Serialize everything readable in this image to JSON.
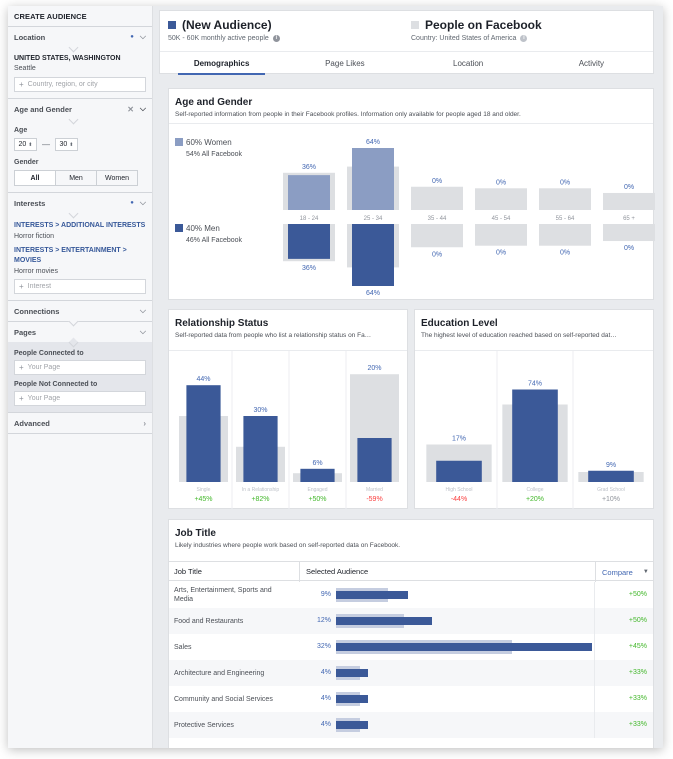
{
  "sidebar": {
    "title": "CREATE AUDIENCE",
    "location": {
      "label": "Location",
      "selected": "UNITED STATES, WASHINGTON",
      "city": "Seattle",
      "placeholder": "Country, region, or city"
    },
    "age_gender": {
      "label": "Age and Gender",
      "age_label": "Age",
      "age_min": "20",
      "age_max": "30",
      "gender_label": "Gender",
      "gender_options": [
        "All",
        "Men",
        "Women"
      ],
      "gender_selected": "All"
    },
    "interests": {
      "label": "Interests",
      "items": [
        {
          "path_a": "INTERESTS",
          "path_b": "ADDITIONAL INTERESTS",
          "value": "Horror fiction"
        },
        {
          "path_a": "INTERESTS",
          "path_b": "ENTERTAINMENT",
          "path_c": "MOVIES",
          "value": "Horror movies"
        }
      ],
      "placeholder": "Interest"
    },
    "connections": {
      "label": "Connections"
    },
    "pages": {
      "label": "Pages",
      "connected_label": "People Connected to",
      "connected_placeholder": "Your Page",
      "not_connected_label": "People Not Connected to",
      "not_connected_placeholder": "Your Page"
    },
    "advanced": {
      "label": "Advanced"
    }
  },
  "header": {
    "audience_title": "(New Audience)",
    "audience_sub": "50K - 60K monthly active people",
    "facebook_title": "People on Facebook",
    "facebook_sub": "Country: United States of America",
    "tabs": [
      "Demographics",
      "Page Likes",
      "Location",
      "Activity"
    ],
    "active_tab": "Demographics",
    "colors": {
      "audience": "#3b5998",
      "facebook": "#dddfe2"
    }
  },
  "age_gender_section": {
    "title": "Age and Gender",
    "subtitle": "Self-reported information from people in their Facebook profiles. Information only available for people aged 18 and older.",
    "women_label": "60% Women",
    "women_sub": "54% All Facebook",
    "men_label": "40% Men",
    "men_sub": "46% All Facebook"
  },
  "relationship_section": {
    "title": "Relationship Status",
    "subtitle": "Self-reported data from people who list a relationship status on Fa…"
  },
  "education_section": {
    "title": "Education Level",
    "subtitle": "The highest level of education reached based on self-reported dat…"
  },
  "job_section": {
    "title": "Job Title",
    "subtitle": "Likely industries where people work based on self-reported data on Facebook.",
    "col_job": "Job Title",
    "col_selected": "Selected Audience",
    "col_compare": "Compare",
    "rows": [
      {
        "name": "Arts, Entertainment, Sports and Media",
        "pct": "9%",
        "value": 9,
        "baseline": 6.5,
        "compare": "+50%"
      },
      {
        "name": "Food and Restaurants",
        "pct": "12%",
        "value": 12,
        "baseline": 8.5,
        "compare": "+50%"
      },
      {
        "name": "Sales",
        "pct": "32%",
        "value": 32,
        "baseline": 22,
        "compare": "+45%"
      },
      {
        "name": "Architecture and Engineering",
        "pct": "4%",
        "value": 4,
        "baseline": 3,
        "compare": "+33%"
      },
      {
        "name": "Community and Social Services",
        "pct": "4%",
        "value": 4,
        "baseline": 3,
        "compare": "+33%"
      },
      {
        "name": "Protective Services",
        "pct": "4%",
        "value": 4,
        "baseline": 3,
        "compare": "+33%"
      }
    ]
  },
  "chart_data": [
    {
      "type": "bar",
      "title": "Age and Gender",
      "categories": [
        "18 - 24",
        "25 - 34",
        "35 - 44",
        "45 - 54",
        "55 - 64",
        "65 +"
      ],
      "series": [
        {
          "name": "60% Women",
          "values": [
            36,
            64,
            0,
            0,
            0,
            0
          ],
          "labels": [
            "36%",
            "64%",
            "0%",
            "0%",
            "0%",
            "0%"
          ],
          "baseline": [
            24,
            28,
            15,
            14,
            14,
            11
          ]
        },
        {
          "name": "40% Men",
          "values": [
            36,
            64,
            0,
            0,
            0,
            0
          ],
          "labels": [
            "36%",
            "64%",
            "0%",
            "0%",
            "0%",
            "0%"
          ],
          "baseline": [
            24,
            28,
            15,
            14,
            14,
            11
          ]
        }
      ],
      "ylim": [
        0,
        64
      ]
    },
    {
      "type": "bar",
      "title": "Relationship Status",
      "categories": [
        "Single",
        "In a Relationship",
        "Engaged",
        "Married"
      ],
      "values": [
        44,
        30,
        6,
        20
      ],
      "labels": [
        "44%",
        "30%",
        "6%",
        "20%"
      ],
      "baseline": [
        30,
        16,
        4,
        49
      ],
      "compare": [
        "+45%",
        "+82%",
        "+50%",
        "-59%"
      ],
      "ylim": [
        0,
        50
      ]
    },
    {
      "type": "bar",
      "title": "Education Level",
      "categories": [
        "High School",
        "College",
        "Grad School"
      ],
      "values": [
        17,
        74,
        9
      ],
      "labels": [
        "17%",
        "74%",
        "9%"
      ],
      "baseline": [
        30,
        62,
        8
      ],
      "compare": [
        "-44%",
        "+20%",
        "+10%"
      ],
      "ylim": [
        0,
        80
      ]
    }
  ]
}
